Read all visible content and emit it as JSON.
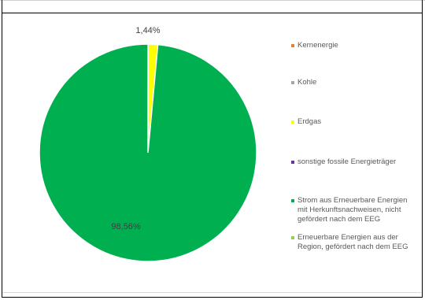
{
  "chart_data": {
    "type": "pie",
    "categories": [
      "Kernenergie",
      "Kohle",
      "Erdgas",
      "sonstige fossile Energieträger",
      "Strom aus Erneuerbare Energien mit Herkunftsnachweisen, nicht gefördert nach dem EEG",
      "Erneuerbare Energien aus der Region, gefördert nach dem EEG"
    ],
    "values": [
      0,
      0,
      1.44,
      0,
      98.56,
      0
    ],
    "colors": [
      "#ed7d31",
      "#a5a5a5",
      "#ffff00",
      "#7030a0",
      "#00b050",
      "#92d050"
    ],
    "data_labels": [
      "",
      "",
      "1,44%",
      "",
      "98,56%",
      ""
    ],
    "legend_labels": [
      "Kernenergie",
      "Kohle",
      "Erdgas",
      "sonstige fossile Energieträger",
      "Strom aus Erneuerbare Energien\nmit Herkunftsnachweisen, nicht\ngefördert nach dem EEG",
      "Erneuerbare Energien aus der\nRegion, gefördert nach dem EEG"
    ],
    "legend_position": "right"
  }
}
